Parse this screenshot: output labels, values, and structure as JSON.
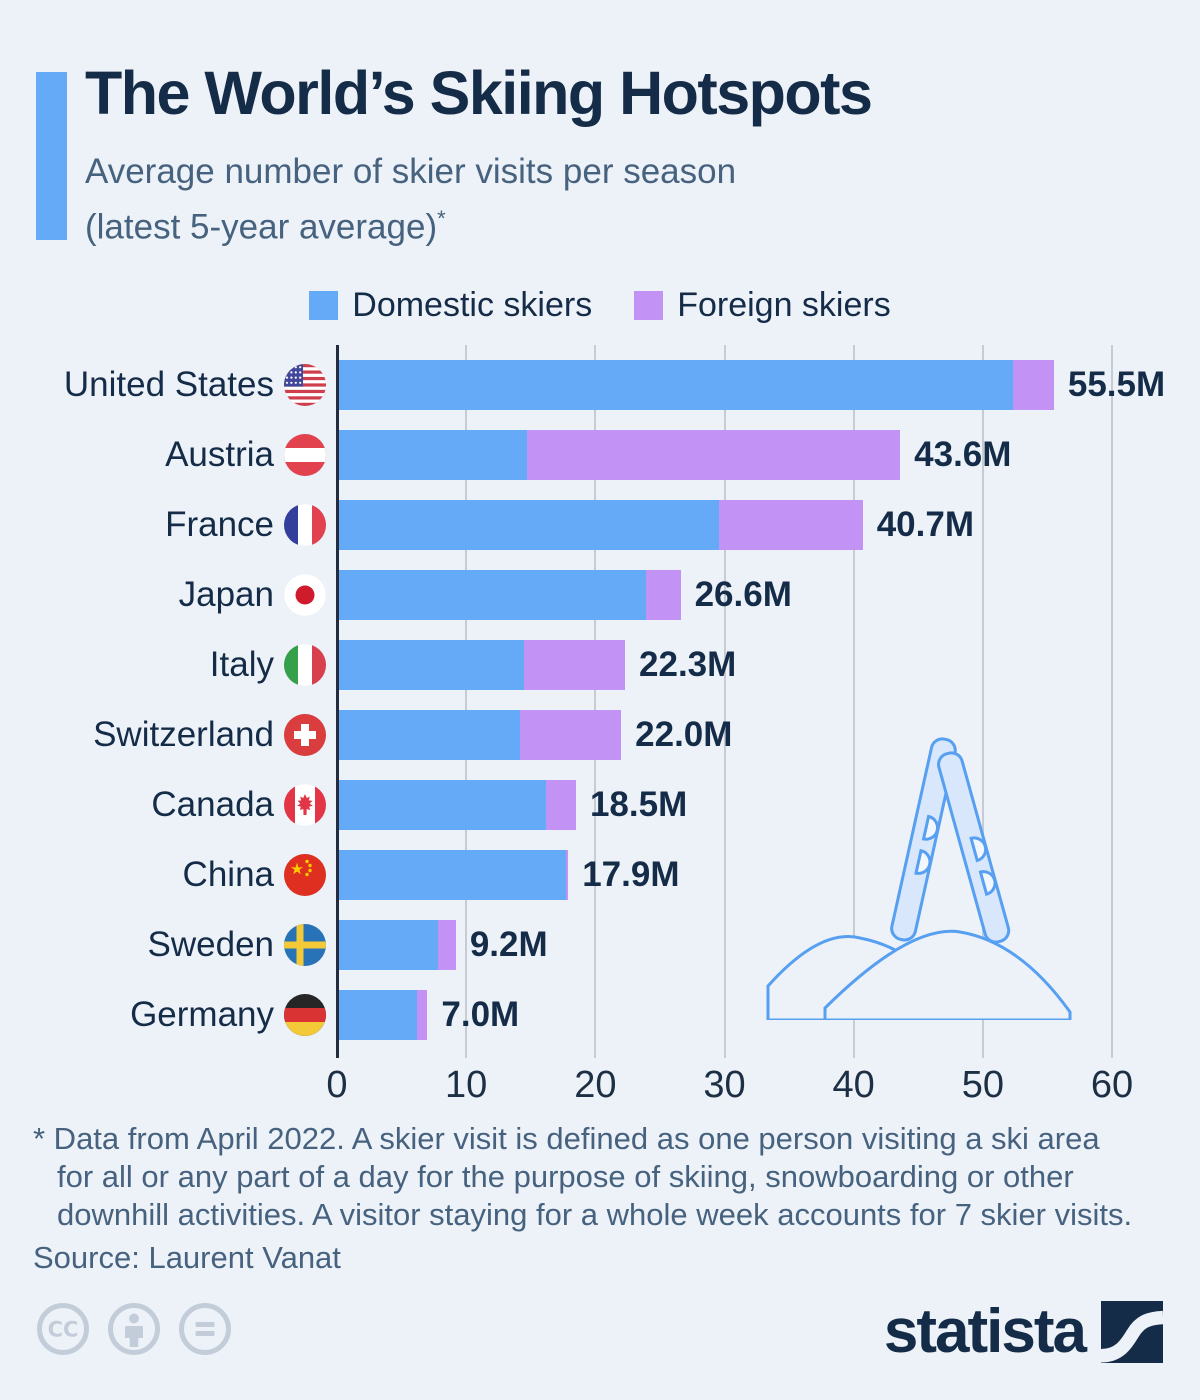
{
  "header": {
    "title": "The World’s Skiing Hotspots",
    "subtitle_line1": "Average number of skier visits per season",
    "subtitle_line2": "(latest 5-year average)",
    "footnote_marker": "*"
  },
  "legend": [
    {
      "label": "Domestic skiers",
      "color": "#64aaf7"
    },
    {
      "label": "Foreign skiers",
      "color": "#c392f5"
    }
  ],
  "chart_data": {
    "type": "bar",
    "orientation": "horizontal",
    "stacked": true,
    "categories": [
      "United States",
      "Austria",
      "France",
      "Japan",
      "Italy",
      "Switzerland",
      "Canada",
      "China",
      "Sweden",
      "Germany"
    ],
    "flags": [
      "us",
      "at",
      "fr",
      "jp",
      "it",
      "ch",
      "ca",
      "cn",
      "se",
      "de"
    ],
    "series": [
      {
        "name": "Domestic skiers",
        "color": "#64aaf7",
        "values": [
          52.3,
          14.7,
          29.6,
          23.9,
          14.5,
          14.2,
          16.2,
          17.7,
          7.8,
          6.2
        ]
      },
      {
        "name": "Foreign skiers",
        "color": "#c392f5",
        "values": [
          3.2,
          28.9,
          11.1,
          2.7,
          7.8,
          7.8,
          2.3,
          0.2,
          1.4,
          0.8
        ]
      }
    ],
    "totals": [
      55.5,
      43.6,
      40.7,
      26.6,
      22.3,
      22.0,
      18.5,
      17.9,
      9.2,
      7.0
    ],
    "total_labels": [
      "55.5M",
      "43.6M",
      "40.7M",
      "26.6M",
      "22.3M",
      "22.0M",
      "18.5M",
      "17.9M",
      "9.2M",
      "7.0M"
    ],
    "xlim": [
      0,
      60
    ],
    "xticks": [
      0,
      10,
      20,
      30,
      40,
      50,
      60
    ],
    "grid": true,
    "legend_position": "top",
    "unit": "million skier visits"
  },
  "colors": {
    "background": "#edf2f8",
    "accent": "#64aaf7",
    "title_text": "#152c49",
    "muted_text": "#46627f",
    "gridline": "#c6cbd4",
    "illustration": "#579ff1",
    "license_gray": "#c3cdd9"
  },
  "footnote": {
    "lines": [
      "* Data from April 2022. A skier visit is defined as one person visiting a ski area",
      "for all or any part of a day for the purpose of skiing, snowboarding or other",
      "downhill activities. A visitor staying for a whole week accounts for 7 skier visits."
    ],
    "source": "Source: Laurent Vanat"
  },
  "license_icons": [
    "cc-icon",
    "attribution-person-icon",
    "no-derivatives-equals-icon"
  ],
  "branding": {
    "logo_text": "statista"
  }
}
